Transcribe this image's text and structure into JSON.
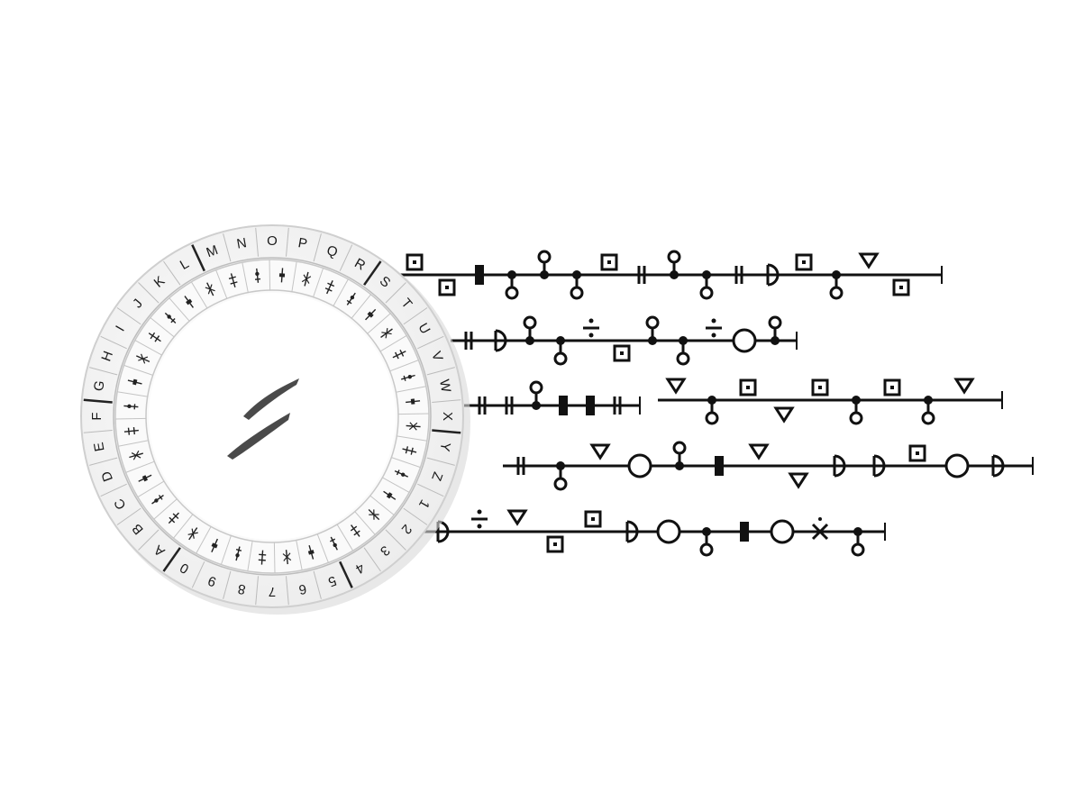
{
  "outer_ring": {
    "labels": [
      "A",
      "B",
      "C",
      "D",
      "E",
      "F",
      "G",
      "H",
      "I",
      "J",
      "K",
      "L",
      "M",
      "N",
      "O",
      "P",
      "Q",
      "R",
      "S",
      "T",
      "U",
      "V",
      "W",
      "X",
      "Y",
      "Z",
      "1",
      "2",
      "3",
      "4",
      "5",
      "6",
      "7",
      "8",
      "9",
      "0"
    ]
  },
  "inner_ring": {
    "glyph_count": 36
  },
  "cipher_lines": [
    {
      "glyphs": [
        "sq",
        "sq",
        "rect",
        "dot",
        "dot",
        "dot",
        "sq",
        "bar",
        "dot",
        "dot",
        "bar",
        "semi",
        "sq",
        "dot",
        "tri",
        "sq",
        "tri"
      ]
    },
    {
      "glyphs": [
        "bar",
        "semi",
        "dot",
        "dot",
        "div",
        "sq",
        "dot",
        "dot",
        "div",
        "circle",
        "dot",
        "dot"
      ]
    },
    {
      "glyphs": [
        "bar",
        "bar",
        "dot",
        "rect",
        "rect",
        "bar",
        "bar"
      ]
    },
    {
      "glyphs": [
        "tri",
        "dot",
        "sq",
        "tri",
        "sq",
        "dot",
        "sq",
        "dot",
        "tri"
      ]
    },
    {
      "glyphs": [
        "bar",
        "dot",
        "tri",
        "circle",
        "dot",
        "rect",
        "tri",
        "tri",
        "semi",
        "semi",
        "sq",
        "circle",
        "semi"
      ]
    },
    {
      "glyphs": [
        "semi",
        "div",
        "tri",
        "sq",
        "sq",
        "semi",
        "circle",
        "dot",
        "rect",
        "circle",
        "x",
        "dot"
      ]
    }
  ],
  "colors": {
    "ink": "#111111",
    "ring_face": "#f7f7f7",
    "ring_edge": "#cfcfcf",
    "brush": "#4a4a4a"
  }
}
